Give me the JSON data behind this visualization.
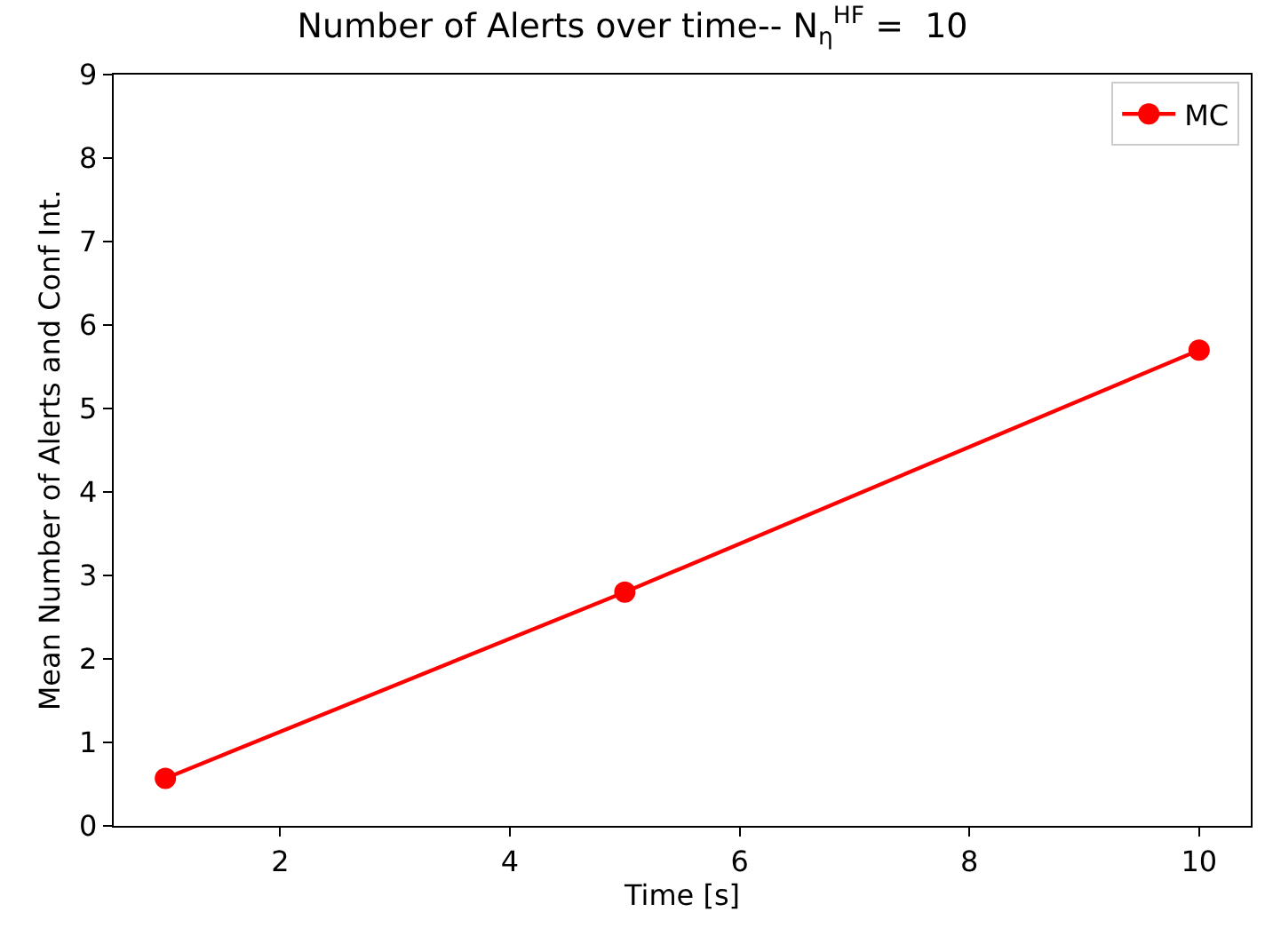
{
  "chart_data": {
    "type": "line",
    "title": "Number of Alerts over time-- N$_{η}$$^{HF}$ =  10",
    "xlabel": "Time [s]",
    "ylabel": "Mean Number of Alerts and Conf Int.",
    "x": [
      1,
      5,
      10
    ],
    "series": [
      {
        "name": "MC",
        "color": "#ff0000",
        "values": [
          0.57,
          2.8,
          5.7
        ]
      }
    ],
    "xlim": [
      0.55,
      10.45
    ],
    "xticks": [
      2,
      4,
      6,
      8,
      10
    ],
    "ylim": [
      0,
      9
    ],
    "yticks": [
      0,
      1,
      2,
      3,
      4,
      5,
      6,
      7,
      8,
      9
    ],
    "legend": "top right",
    "marker": "circle",
    "line_style": "solid"
  }
}
